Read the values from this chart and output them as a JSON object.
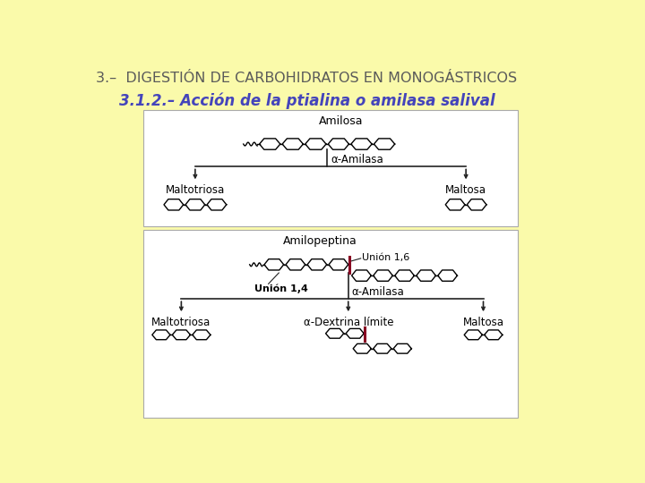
{
  "bg_color": "#FAFAAA",
  "title_text": "3.–  DIGESTIÓN DE CARBOHIDRATOS EN MONOGÁSTRICOS",
  "subtitle_text": "3.1.2.– Acción de la ptialina o amilasa salival",
  "title_color": "#5a5a5a",
  "subtitle_color": "#4444bb",
  "box_bg": "#ffffff",
  "box_border": "#999999",
  "arrow_color": "#222222",
  "red_color": "#880022",
  "diagram1": {
    "amilosa_label": "Amilosa",
    "enzyme_label": "α-Amilasa",
    "left_product": "Maltotriosa",
    "right_product": "Maltosa"
  },
  "diagram2": {
    "amilopeptina_label": "Amilopeptina",
    "union14_label": "Unión 1,4",
    "union16_label": "Unión 1,6",
    "enzyme_label": "α-Amilasa",
    "left_product": "Maltotriosa",
    "center_product": "α-Dextrina límite",
    "right_product": "Maltosa"
  }
}
